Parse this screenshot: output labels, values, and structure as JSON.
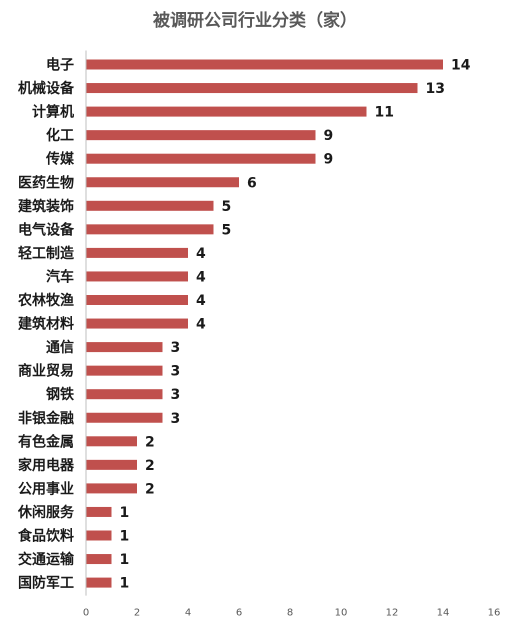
{
  "chart_data": {
    "type": "bar",
    "orientation": "horizontal",
    "title": "被调研公司行业分类（家）",
    "categories": [
      "电子",
      "机械设备",
      "计算机",
      "化工",
      "传媒",
      "医药生物",
      "建筑装饰",
      "电气设备",
      "轻工制造",
      "汽车",
      "农林牧渔",
      "建筑材料",
      "通信",
      "商业贸易",
      "钢铁",
      "非银金融",
      "有色金属",
      "家用电器",
      "公用事业",
      "休闲服务",
      "食品饮料",
      "交通运输",
      "国防军工"
    ],
    "values": [
      14,
      13,
      11,
      9,
      9,
      6,
      5,
      5,
      4,
      4,
      4,
      4,
      3,
      3,
      3,
      3,
      2,
      2,
      2,
      1,
      1,
      1,
      1
    ],
    "xlim": [
      0,
      16
    ],
    "xticks": [
      "0",
      "2",
      "4",
      "6",
      "8",
      "10",
      "12",
      "14",
      "16"
    ],
    "xlabel": "",
    "ylabel": "",
    "grid": false,
    "legend": "none",
    "data_labels": true,
    "bar_color": "#c0504d",
    "axis_color": "#bfbfbf"
  }
}
